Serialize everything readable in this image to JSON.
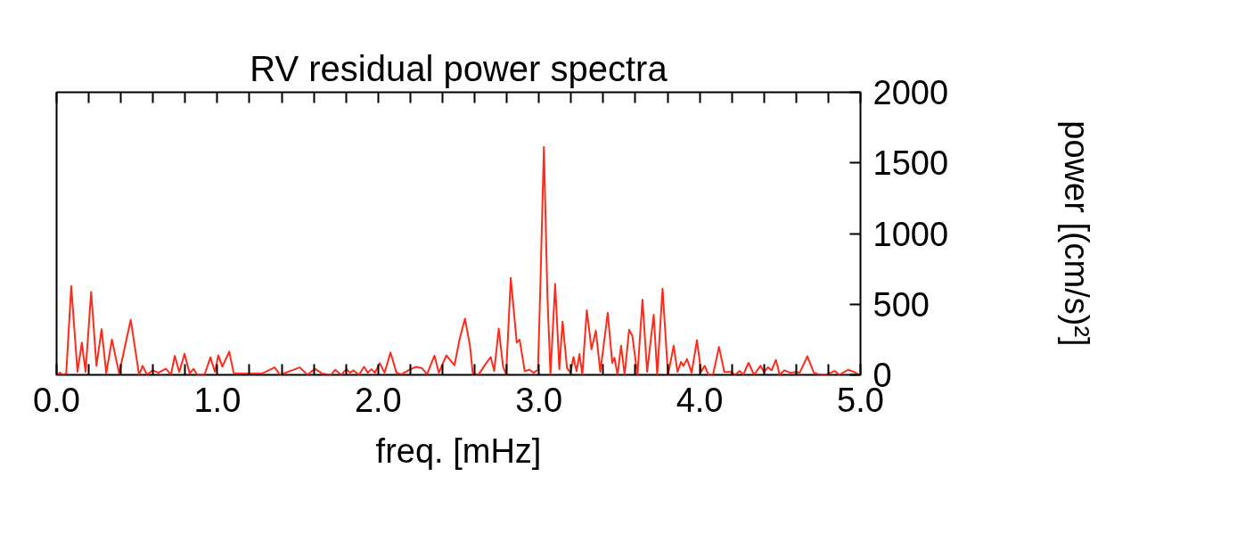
{
  "chart_data": {
    "type": "line",
    "title": "RV residual power spectra",
    "xlabel": "freq. [mHz]",
    "ylabel": "power [(cm/s)²]",
    "xlim": [
      0,
      5
    ],
    "ylim": [
      0,
      2000
    ],
    "xticks": [
      {
        "value": 0,
        "label": "0.0"
      },
      {
        "value": 0.2,
        "label": null
      },
      {
        "value": 0.4,
        "label": null
      },
      {
        "value": 0.6,
        "label": null
      },
      {
        "value": 0.8,
        "label": null
      },
      {
        "value": 1,
        "label": "1.0"
      },
      {
        "value": 1.2,
        "label": null
      },
      {
        "value": 1.4,
        "label": null
      },
      {
        "value": 1.6,
        "label": null
      },
      {
        "value": 1.8,
        "label": null
      },
      {
        "value": 2,
        "label": "2.0"
      },
      {
        "value": 2.2,
        "label": null
      },
      {
        "value": 2.4,
        "label": null
      },
      {
        "value": 2.6,
        "label": null
      },
      {
        "value": 2.8,
        "label": null
      },
      {
        "value": 3,
        "label": "3.0"
      },
      {
        "value": 3.2,
        "label": null
      },
      {
        "value": 3.4,
        "label": null
      },
      {
        "value": 3.6,
        "label": null
      },
      {
        "value": 3.8,
        "label": null
      },
      {
        "value": 4,
        "label": "4.0"
      },
      {
        "value": 4.2,
        "label": null
      },
      {
        "value": 4.4,
        "label": null
      },
      {
        "value": 4.6,
        "label": null
      },
      {
        "value": 4.8,
        "label": null
      },
      {
        "value": 5,
        "label": "5.0"
      }
    ],
    "yticks": [
      0,
      500,
      1000,
      1500,
      2000
    ],
    "grid": false,
    "marker": "none",
    "line_style": "solid",
    "series": [
      {
        "color": "#ff2a1a",
        "x": [
          0.0,
          0.02,
          0.04,
          0.06,
          0.091,
          0.13,
          0.157,
          0.18,
          0.215,
          0.248,
          0.28,
          0.309,
          0.344,
          0.389,
          0.461,
          0.513,
          0.535,
          0.563,
          0.596,
          0.633,
          0.68,
          0.711,
          0.735,
          0.763,
          0.796,
          0.828,
          0.852,
          0.874,
          0.92,
          0.957,
          0.985,
          1.006,
          1.031,
          1.074,
          1.102,
          1.19,
          1.28,
          1.356,
          1.39,
          1.513,
          1.56,
          1.606,
          1.65,
          1.707,
          1.733,
          1.77,
          1.803,
          1.825,
          1.847,
          1.88,
          1.912,
          1.936,
          1.958,
          1.98,
          2.01,
          2.04,
          2.077,
          2.114,
          2.147,
          2.193,
          2.236,
          2.273,
          2.304,
          2.35,
          2.378,
          2.424,
          2.451,
          2.475,
          2.506,
          2.54,
          2.571,
          2.589,
          2.626,
          2.672,
          2.7,
          2.722,
          2.75,
          2.777,
          2.796,
          2.825,
          2.862,
          2.88,
          2.912,
          2.94,
          2.967,
          2.994,
          3.007,
          3.031,
          3.053,
          3.072,
          3.101,
          3.127,
          3.147,
          3.175,
          3.197,
          3.215,
          3.234,
          3.252,
          3.27,
          3.298,
          3.327,
          3.354,
          3.382,
          3.428,
          3.456,
          3.47,
          3.489,
          3.511,
          3.533,
          3.561,
          3.581,
          3.613,
          3.644,
          3.673,
          3.714,
          3.736,
          3.769,
          3.803,
          3.838,
          3.862,
          3.884,
          3.899,
          3.921,
          3.95,
          3.983,
          4.009,
          4.031,
          4.055,
          4.083,
          4.12,
          4.153,
          4.194,
          4.221,
          4.249,
          4.271,
          4.304,
          4.338,
          4.378,
          4.4,
          4.424,
          4.448,
          4.474,
          4.498,
          4.526,
          4.563,
          4.6,
          4.622,
          4.67,
          4.71,
          4.747,
          4.784,
          4.84,
          4.867,
          4.923,
          4.96,
          4.991
        ],
        "values": [
          0,
          15,
          0,
          10,
          628,
          21,
          228,
          21,
          586,
          64,
          324,
          10,
          249,
          10,
          390,
          0,
          64,
          0,
          32,
          15,
          43,
          0,
          134,
          21,
          149,
          10,
          43,
          0,
          0,
          124,
          21,
          138,
          58,
          164,
          10,
          10,
          10,
          53,
          0,
          53,
          0,
          43,
          10,
          0,
          36,
          0,
          40,
          15,
          32,
          0,
          57,
          15,
          40,
          15,
          83,
          15,
          158,
          15,
          4,
          36,
          57,
          47,
          4,
          136,
          15,
          138,
          100,
          68,
          249,
          398,
          207,
          4,
          4,
          83,
          126,
          26,
          328,
          57,
          4,
          686,
          228,
          249,
          26,
          36,
          15,
          36,
          547,
          1612,
          547,
          4,
          643,
          40,
          377,
          47,
          15,
          126,
          26,
          147,
          4,
          458,
          181,
          313,
          21,
          440,
          85,
          121,
          0,
          206,
          0,
          319,
          277,
          0,
          532,
          21,
          426,
          0,
          611,
          0,
          206,
          21,
          92,
          64,
          111,
          15,
          245,
          21,
          64,
          0,
          0,
          198,
          21,
          21,
          0,
          28,
          0,
          85,
          0,
          64,
          21,
          53,
          32,
          106,
          0,
          32,
          15,
          21,
          15,
          132,
          15,
          0,
          0,
          28,
          0,
          36,
          21,
          0
        ]
      }
    ]
  }
}
